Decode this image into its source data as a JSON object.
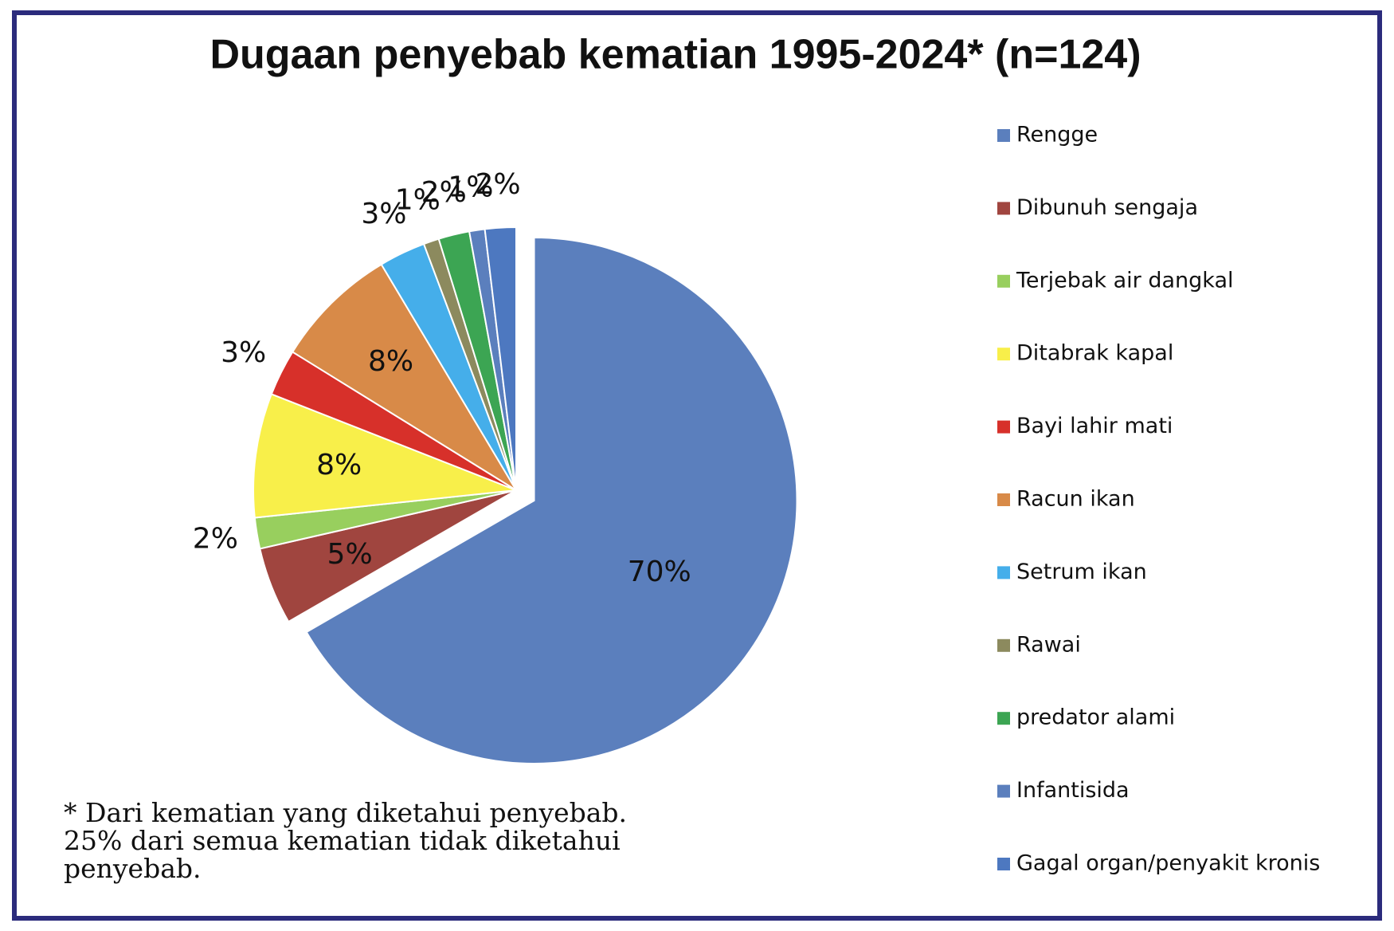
{
  "chart_data": {
    "type": "pie",
    "title": "Dugaan penyebab kematian 1995-2024* (n=124)",
    "categories": [
      "Rengge",
      "Dibunuh sengaja",
      "Terjebak air dangkal",
      "Ditabrak kapal",
      "Bayi lahir mati",
      "Racun ikan",
      "Setrum ikan",
      "Rawai",
      "predator alami",
      "Infantisida",
      "Gagal organ/penyakit kronis"
    ],
    "values": [
      70,
      5,
      2,
      8,
      3,
      8,
      3,
      1,
      2,
      1,
      2
    ],
    "value_labels": [
      "70%",
      "5%",
      "2%",
      "8%",
      "3%",
      "8%",
      "3%",
      "1%",
      "2%",
      "1%",
      "2%"
    ],
    "colors": [
      "#5b7fbd",
      "#a0453f",
      "#98cf5e",
      "#f8ef4a",
      "#d7302a",
      "#d88a48",
      "#45aeea",
      "#8c8a5e",
      "#3ca553",
      "#5b7fbd",
      "#4d78c0"
    ],
    "exploded": "Rengge",
    "legend": "right",
    "footnote": [
      "* Dari kematian yang diketahui penyebab.",
      "25% dari semua kematian tidak diketahui",
      "penyebab."
    ]
  }
}
